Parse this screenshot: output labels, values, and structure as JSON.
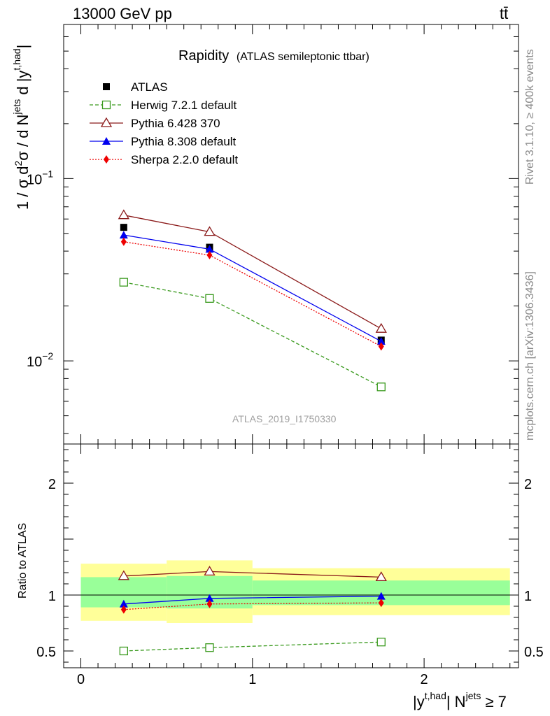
{
  "header": {
    "left": "13000 GeV pp",
    "right": "tt̄"
  },
  "side_labels": {
    "rivet": "Rivet 3.1.10, ≥ 400k events",
    "mcplots": "mcplots.cern.ch [arXiv:1306.3436]"
  },
  "chart_data": {
    "type": "line",
    "title": "Rapidity",
    "subtitle": "(ATLAS semileptonic ttbar)",
    "watermark": "ATLAS_2019_I1750330",
    "xlabel_parts": {
      "base": "|y",
      "sup": "t,had",
      "mid": "| N",
      "sup2": "jets",
      "tail": " ≥ 7"
    },
    "ylabel_main": "1 / σ d²σ / d N^jets d |y^t,had|",
    "ylabel_ratio": "Ratio to ATLAS",
    "xlim": [
      -0.1,
      2.55
    ],
    "ylim_main": [
      0.0035,
      0.7
    ],
    "ylim_ratio": [
      0.35,
      2.35
    ],
    "y_scale_main": "log",
    "main_ticks": [
      {
        "value": 0.1,
        "label": "10",
        "exp": "−1"
      },
      {
        "value": 0.01,
        "label": "10",
        "exp": "−2"
      }
    ],
    "ratio_ticks": [
      {
        "value": 0.5,
        "label": "0.5"
      },
      {
        "value": 1,
        "label": "1"
      },
      {
        "value": 2,
        "label": "2"
      }
    ],
    "x_ticks": [
      {
        "value": 0,
        "label": "0"
      },
      {
        "value": 1,
        "label": "1"
      },
      {
        "value": 2,
        "label": "2"
      }
    ],
    "legend_position": "top-left",
    "x": [
      0.25,
      0.75,
      1.75
    ],
    "bin_edges": [
      [
        0,
        0.5
      ],
      [
        0.5,
        1.0
      ],
      [
        1.0,
        2.5
      ]
    ],
    "data": {
      "name": "ATLAS",
      "values": [
        0.054,
        0.042,
        0.013
      ],
      "band_yellow": [
        [
          0.77,
          1.28
        ],
        [
          0.75,
          1.31
        ],
        [
          0.82,
          1.24
        ]
      ],
      "band_green": [
        [
          0.89,
          1.16
        ],
        [
          0.88,
          1.17
        ],
        [
          0.91,
          1.13
        ]
      ]
    },
    "series": [
      {
        "name": "Herwig 7.2.1 default",
        "color": "#3a9a1e",
        "dash": "5,3",
        "marker": "open-square",
        "values": [
          0.027,
          0.022,
          0.0072
        ],
        "ratio": [
          0.5,
          0.53,
          0.58
        ]
      },
      {
        "name": "Pythia 6.428 370",
        "color": "#8b1a1a",
        "dash": "",
        "marker": "open-triangle",
        "values": [
          0.063,
          0.051,
          0.015
        ],
        "ratio": [
          1.17,
          1.21,
          1.16
        ]
      },
      {
        "name": "Pythia 8.308 default",
        "color": "#0000ee",
        "dash": "",
        "marker": "filled-triangle",
        "values": [
          0.049,
          0.041,
          0.0128
        ],
        "ratio": [
          0.92,
          0.97,
          0.99
        ]
      },
      {
        "name": "Sherpa 2.2.0 default",
        "color": "#ee0000",
        "dash": "2,2",
        "marker": "filled-diamond",
        "values": [
          0.045,
          0.038,
          0.012
        ],
        "ratio": [
          0.87,
          0.92,
          0.93
        ]
      }
    ]
  }
}
